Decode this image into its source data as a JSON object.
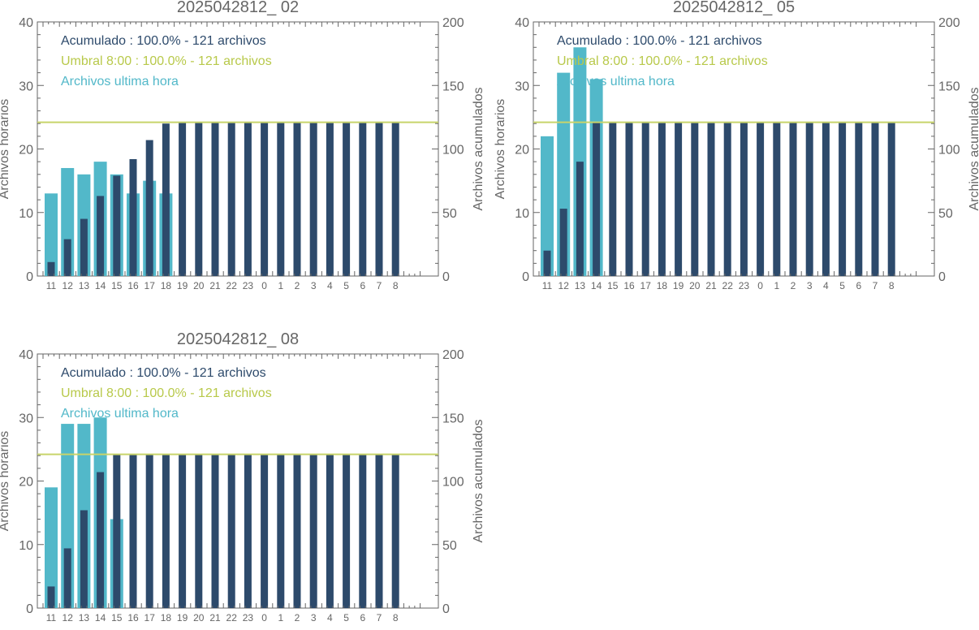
{
  "colors": {
    "hourly": "#52b8c9",
    "cumulative": "#2d4a6b",
    "threshold": "#c8d46a",
    "axis": "#666666",
    "legend_cumulative": "#2d4a6b",
    "legend_threshold": "#b8c94a",
    "legend_hourly": "#52b8c9"
  },
  "chart_data": [
    {
      "type": "bar",
      "title": "2025042812_ 02",
      "ylabel_left": "Archivos horarios",
      "ylabel_right": "Archivos acumulados",
      "ylim_left": [
        0,
        40
      ],
      "ylim_right": [
        0,
        200
      ],
      "yticks_left": [
        "0",
        "10",
        "20",
        "30",
        "40"
      ],
      "yticks_right": [
        "0",
        "50",
        "100",
        "150",
        "200"
      ],
      "categories": [
        "11",
        "12",
        "13",
        "14",
        "15",
        "16",
        "17",
        "18",
        "19",
        "20",
        "21",
        "22",
        "23",
        "0",
        "1",
        "2",
        "3",
        "4",
        "5",
        "6",
        "7",
        "8"
      ],
      "threshold": 121,
      "legend": [
        "Acumulado : 100.0% - 121 archivos",
        "Umbral 8:00 : 100.0% - 121 archivos",
        "Archivos ultima hora"
      ],
      "series": [
        {
          "name": "Archivos ultima hora",
          "axis": "left",
          "values": [
            13,
            17,
            16,
            18,
            16,
            13,
            15,
            13,
            0,
            0,
            0,
            0,
            0,
            0,
            0,
            0,
            0,
            0,
            0,
            0,
            0,
            0
          ]
        },
        {
          "name": "Acumulado",
          "axis": "right",
          "values": [
            11,
            29,
            45,
            63,
            79,
            92,
            107,
            120,
            121,
            121,
            121,
            121,
            121,
            121,
            121,
            121,
            121,
            121,
            121,
            121,
            121,
            121
          ]
        }
      ]
    },
    {
      "type": "bar",
      "title": "2025042812_ 05",
      "ylabel_left": "Archivos horarios",
      "ylabel_right": "Archivos acumulados",
      "ylim_left": [
        0,
        40
      ],
      "ylim_right": [
        0,
        200
      ],
      "yticks_left": [
        "0",
        "10",
        "20",
        "30",
        "40"
      ],
      "yticks_right": [
        "0",
        "50",
        "100",
        "150",
        "200"
      ],
      "categories": [
        "11",
        "12",
        "13",
        "14",
        "15",
        "16",
        "17",
        "18",
        "19",
        "20",
        "21",
        "22",
        "23",
        "0",
        "1",
        "2",
        "3",
        "4",
        "5",
        "6",
        "7",
        "8"
      ],
      "threshold": 121,
      "legend": [
        "Acumulado : 100.0% - 121 archivos",
        "Umbral 8:00 : 100.0% - 121 archivos",
        "Archivos ultima hora"
      ],
      "series": [
        {
          "name": "Archivos ultima hora",
          "axis": "left",
          "values": [
            22,
            32,
            36,
            31,
            0,
            0,
            0,
            0,
            0,
            0,
            0,
            0,
            0,
            0,
            0,
            0,
            0,
            0,
            0,
            0,
            0,
            0
          ]
        },
        {
          "name": "Acumulado",
          "axis": "right",
          "values": [
            20,
            53,
            90,
            121,
            121,
            121,
            121,
            121,
            121,
            121,
            121,
            121,
            121,
            121,
            121,
            121,
            121,
            121,
            121,
            121,
            121,
            121
          ]
        }
      ]
    },
    {
      "type": "bar",
      "title": "2025042812_ 08",
      "ylabel_left": "Archivos horarios",
      "ylabel_right": "Archivos acumulados",
      "ylim_left": [
        0,
        40
      ],
      "ylim_right": [
        0,
        200
      ],
      "yticks_left": [
        "0",
        "10",
        "20",
        "30",
        "40"
      ],
      "yticks_right": [
        "0",
        "50",
        "100",
        "150",
        "200"
      ],
      "categories": [
        "11",
        "12",
        "13",
        "14",
        "15",
        "16",
        "17",
        "18",
        "19",
        "20",
        "21",
        "22",
        "23",
        "0",
        "1",
        "2",
        "3",
        "4",
        "5",
        "6",
        "7",
        "8"
      ],
      "threshold": 121,
      "legend": [
        "Acumulado : 100.0% - 121 archivos",
        "Umbral 8:00 : 100.0% - 121 archivos",
        "Archivos ultima hora"
      ],
      "series": [
        {
          "name": "Archivos ultima hora",
          "axis": "left",
          "values": [
            19,
            29,
            29,
            30,
            14,
            0,
            0,
            0,
            0,
            0,
            0,
            0,
            0,
            0,
            0,
            0,
            0,
            0,
            0,
            0,
            0,
            0
          ]
        },
        {
          "name": "Acumulado",
          "axis": "right",
          "values": [
            17,
            47,
            77,
            107,
            121,
            121,
            121,
            121,
            121,
            121,
            121,
            121,
            121,
            121,
            121,
            121,
            121,
            121,
            121,
            121,
            121,
            121
          ]
        }
      ]
    }
  ]
}
